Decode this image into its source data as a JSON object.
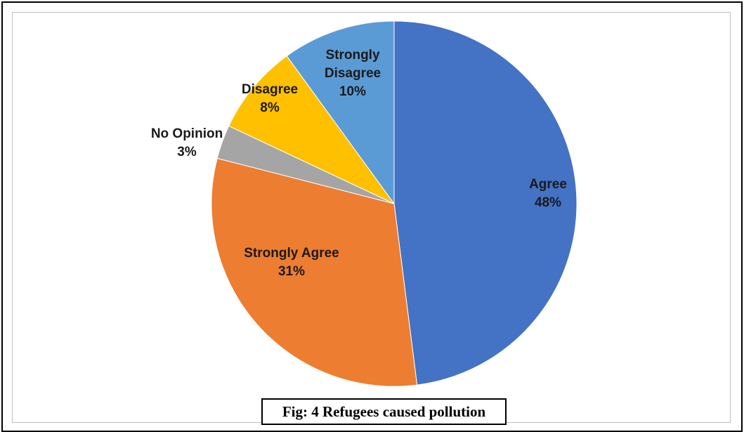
{
  "chart_data": {
    "type": "pie",
    "title": "",
    "slices": [
      {
        "name": "Agree",
        "value": 48,
        "label": "48%",
        "color": "#4472c4",
        "label_color": "#1a1a1a"
      },
      {
        "name": "Strongly Agree",
        "value": 31,
        "label": "31%",
        "color": "#ed7d31",
        "label_color": "#1a1a1a"
      },
      {
        "name": "No Opinion",
        "value": 3,
        "label": "3%",
        "color": "#a5a5a5",
        "label_color": "#1a1a1a"
      },
      {
        "name": "Disagree",
        "value": 8,
        "label": "8%",
        "color": "#ffc000",
        "label_color": "#1a1a1a"
      },
      {
        "name": "Strongly Disagree",
        "value": 10,
        "label": "10%",
        "color": "#5b9bd5",
        "label_color": "#1a1a1a"
      }
    ],
    "legend": "none",
    "data_labels": "category-and-percent"
  },
  "caption": "Fig: 4 Refugees caused pollution"
}
